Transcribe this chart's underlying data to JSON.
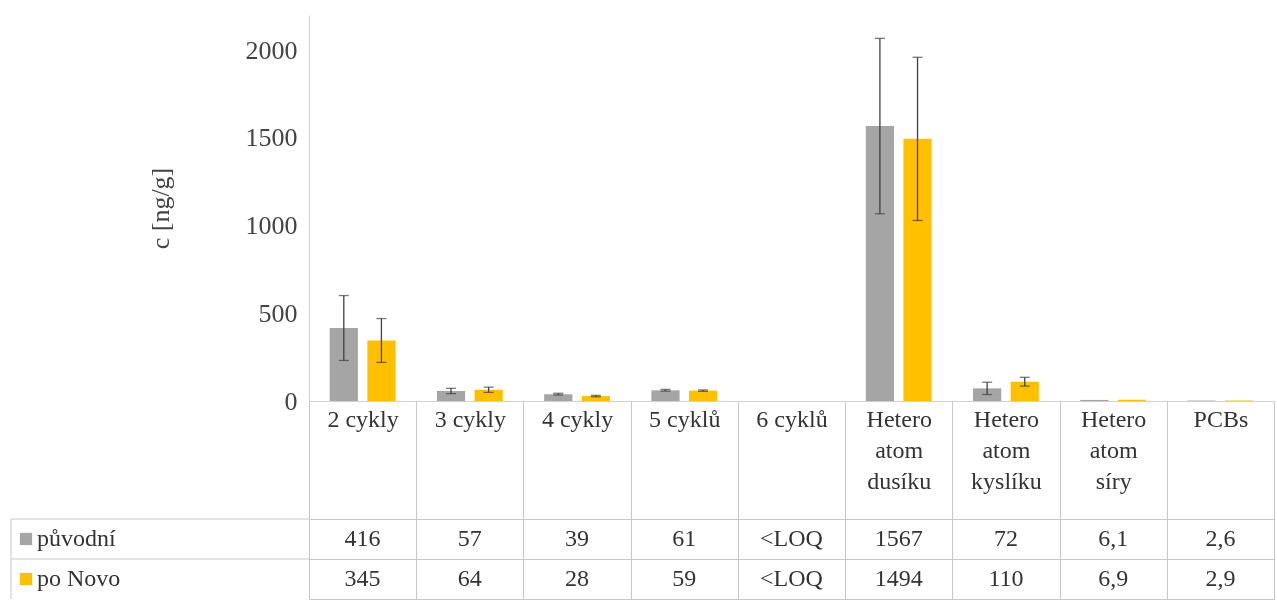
{
  "chart_data": {
    "type": "bar",
    "ylabel": "c [ng/g]",
    "categories": [
      "2 cykly",
      "3 cykly",
      "4 cykly",
      "5 cyklů",
      "6 cyklů",
      "Hetero atom dusíku",
      "Hetero atom kyslíku",
      "Hetero atom síry",
      "PCBs"
    ],
    "ylim": [
      0,
      2200
    ],
    "yticks": [
      0,
      500,
      1000,
      1500,
      2000
    ],
    "grid": false,
    "legend": "bottom",
    "series": [
      {
        "name": "původní",
        "color": "#a5a5a5",
        "values": [
          416,
          57,
          39,
          61,
          null,
          1567,
          72,
          6.1,
          2.6
        ],
        "errors": [
          185,
          15,
          5,
          5,
          null,
          500,
          35,
          null,
          null
        ],
        "value_labels": [
          "416",
          "57",
          "39",
          "61",
          "<LOQ",
          "1567",
          "72",
          "6,1",
          "2,6"
        ]
      },
      {
        "name": "po Novo",
        "color": "#ffc000",
        "values": [
          345,
          64,
          28,
          59,
          null,
          1494,
          110,
          6.9,
          2.9
        ],
        "errors": [
          125,
          15,
          4,
          4,
          null,
          465,
          25,
          null,
          null
        ],
        "value_labels": [
          "345",
          "64",
          "28",
          "59",
          "<LOQ",
          "1494",
          "110",
          "6,9",
          "2,9"
        ]
      }
    ]
  }
}
